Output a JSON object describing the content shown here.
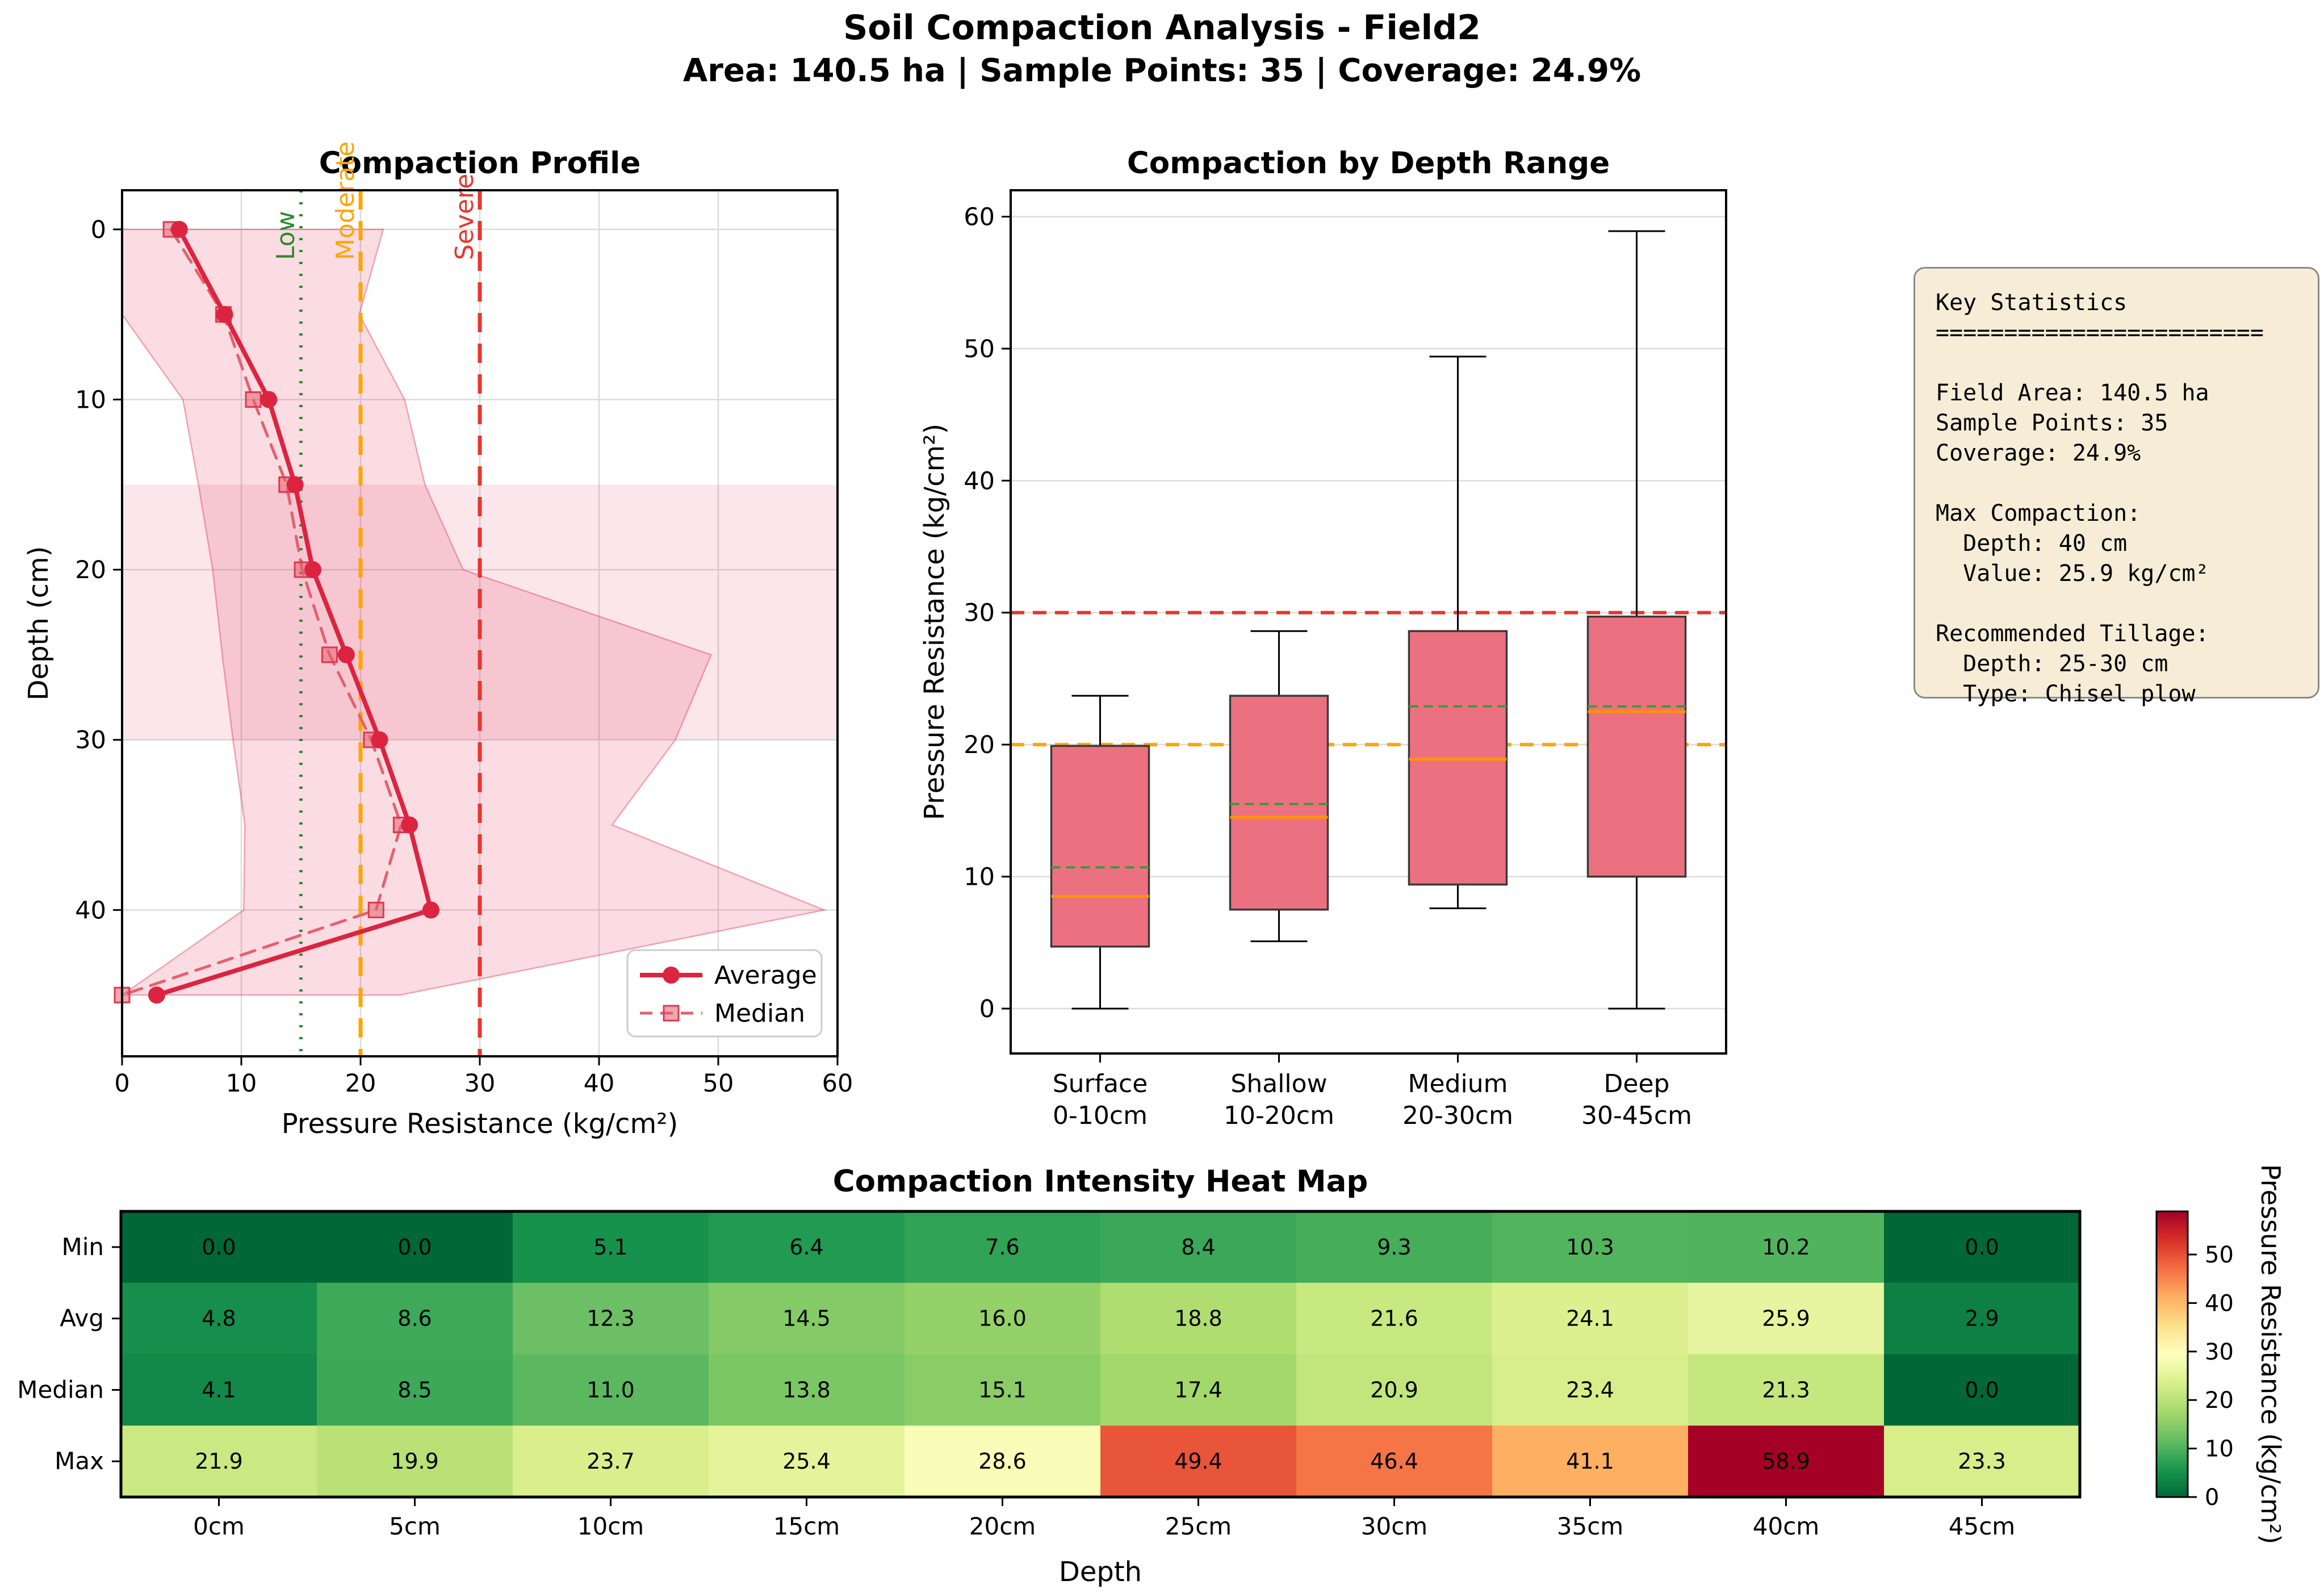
{
  "header": {
    "title": "Soil Compaction Analysis - Field2",
    "subtitle": "Area: 140.5 ha | Sample Points: 35 | Coverage: 24.9%"
  },
  "colors": {
    "average_line": "#dc2440",
    "median_series": "#e4606f",
    "band_fill": "rgba(220,20,60,0.15)",
    "band_edge": "rgba(220,20,60,0.35)",
    "span_fill": "rgba(220,20,60,0.10)",
    "low_green": "#2e8b2e",
    "moderate_orange": "#ffa500",
    "severe_red": "#e8352e",
    "box_fill": "#ec7180",
    "box_edge": "#3a3a3a",
    "box_median_line": "#ff9500",
    "box_mean_line": "#3a9a3a",
    "grid": "#dcdcdc",
    "stats_bg": "#f7edd7",
    "stats_border": "#8a8a8a"
  },
  "chart_data": [
    {
      "type": "line",
      "title": "Compaction Profile",
      "xlabel": "Pressure Resistance (kg/cm²)",
      "ylabel": "Depth (cm)",
      "xlim": [
        0,
        60
      ],
      "ylim_depth": [
        -2.3,
        48.6
      ],
      "xticks": [
        0,
        10,
        20,
        30,
        40,
        50,
        60
      ],
      "yticks": [
        0,
        10,
        20,
        30,
        40
      ],
      "depths": [
        0,
        5,
        10,
        15,
        20,
        25,
        30,
        35,
        40,
        45
      ],
      "series": [
        {
          "name": "Average",
          "values": [
            4.8,
            8.6,
            12.3,
            14.5,
            16.0,
            18.8,
            21.6,
            24.1,
            25.9,
            2.9
          ]
        },
        {
          "name": "Median",
          "values": [
            4.1,
            8.5,
            11.0,
            13.8,
            15.1,
            17.4,
            20.9,
            23.4,
            21.3,
            0.0
          ]
        }
      ],
      "range_band": {
        "min": [
          0.0,
          0.0,
          5.1,
          6.4,
          7.6,
          8.4,
          9.3,
          10.3,
          10.2,
          0.0
        ],
        "max": [
          21.9,
          19.9,
          23.7,
          25.4,
          28.6,
          49.4,
          46.4,
          41.1,
          58.9,
          23.3
        ]
      },
      "depth_span": [
        15,
        30
      ],
      "thresholds": [
        {
          "label": "Low",
          "x": 15,
          "style": "dotted",
          "color_key": "low_green"
        },
        {
          "label": "Moderate",
          "x": 20,
          "style": "dashed",
          "color_key": "moderate_orange"
        },
        {
          "label": "Severe",
          "x": 30,
          "style": "dashed",
          "color_key": "severe_red"
        }
      ],
      "legend": [
        "Average",
        "Median"
      ],
      "legend_position": "lower right"
    },
    {
      "type": "box",
      "title": "Compaction by Depth Range",
      "ylabel": "Pressure Resistance (kg/cm²)",
      "ylim": [
        -3.4,
        62
      ],
      "yticks": [
        0,
        10,
        20,
        30,
        40,
        50,
        60
      ],
      "categories": [
        [
          "Surface",
          "0-10cm"
        ],
        [
          "Shallow",
          "10-20cm"
        ],
        [
          "Medium",
          "20-30cm"
        ],
        [
          "Deep",
          "30-45cm"
        ]
      ],
      "boxes": [
        {
          "whisker_low": 0.0,
          "q1": 4.7,
          "median": 8.5,
          "mean": 10.7,
          "q3": 19.9,
          "whisker_high": 23.7
        },
        {
          "whisker_low": 5.1,
          "q1": 7.5,
          "median": 14.5,
          "mean": 15.5,
          "q3": 23.7,
          "whisker_high": 28.6
        },
        {
          "whisker_low": 7.6,
          "q1": 9.4,
          "median": 18.9,
          "mean": 22.9,
          "q3": 28.6,
          "whisker_high": 49.4
        },
        {
          "whisker_low": 0.0,
          "q1": 10.0,
          "median": 22.5,
          "mean": 22.9,
          "q3": 29.7,
          "whisker_high": 58.9
        }
      ],
      "hlines": [
        {
          "y": 20,
          "color_key": "moderate_orange"
        },
        {
          "y": 30,
          "color_key": "severe_red"
        }
      ]
    },
    {
      "type": "heatmap",
      "title": "Compaction Intensity Heat Map",
      "xlabel": "Depth",
      "rows": [
        "Min",
        "Avg",
        "Median",
        "Max"
      ],
      "columns": [
        "0cm",
        "5cm",
        "10cm",
        "15cm",
        "20cm",
        "25cm",
        "30cm",
        "35cm",
        "40cm",
        "45cm"
      ],
      "values": [
        [
          0.0,
          0.0,
          5.1,
          6.4,
          7.6,
          8.4,
          9.3,
          10.3,
          10.2,
          0.0
        ],
        [
          4.8,
          8.6,
          12.3,
          14.5,
          16.0,
          18.8,
          21.6,
          24.1,
          25.9,
          2.9
        ],
        [
          4.1,
          8.5,
          11.0,
          13.8,
          15.1,
          17.4,
          20.9,
          23.4,
          21.3,
          0.0
        ],
        [
          21.9,
          19.9,
          23.7,
          25.4,
          28.6,
          49.4,
          46.4,
          41.1,
          58.9,
          23.3
        ]
      ],
      "vmin": 0,
      "vmax": 58.9,
      "colormap": "RdYlGn_r",
      "colorbar": {
        "ticks": [
          0,
          10,
          20,
          30,
          40,
          50
        ],
        "label": "Pressure Resistance (kg/cm²)"
      }
    }
  ],
  "stats_panel": {
    "text": "Key Statistics\n========================\n\nField Area: 140.5 ha\nSample Points: 35\nCoverage: 24.9%\n\nMax Compaction:\n  Depth: 40 cm\n  Value: 25.9 kg/cm²\n\nRecommended Tillage:\n  Depth: 25-30 cm\n  Type: Chisel plow"
  }
}
